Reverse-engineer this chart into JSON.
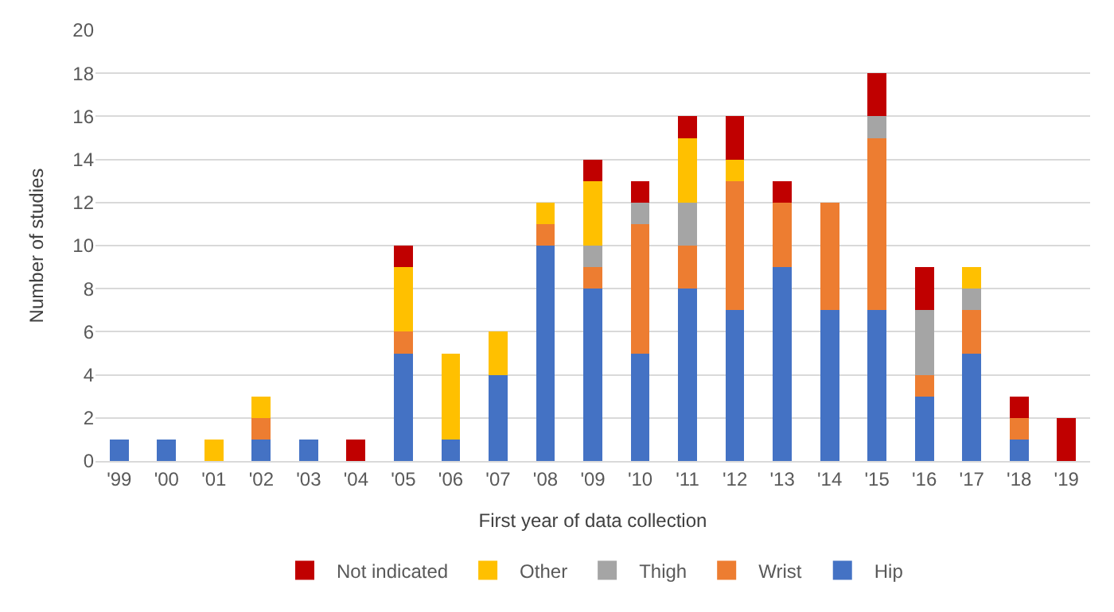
{
  "chart_data": {
    "type": "bar",
    "stacked": true,
    "xlabel": "First year of data collection",
    "ylabel": "Number of studies",
    "categories": [
      "'99",
      "'00",
      "'01",
      "'02",
      "'03",
      "'04",
      "'05",
      "'06",
      "'07",
      "'08",
      "'09",
      "'10",
      "'11",
      "'12",
      "'13",
      "'14",
      "'15",
      "'16",
      "'17",
      "'18",
      "'19"
    ],
    "series": [
      {
        "name": "Hip",
        "color": "#4472c4",
        "values": [
          1,
          1,
          0,
          1,
          1,
          0,
          5,
          1,
          4,
          10,
          8,
          5,
          8,
          7,
          9,
          7,
          7,
          3,
          5,
          1,
          0
        ]
      },
      {
        "name": "Wrist",
        "color": "#ed7d31",
        "values": [
          0,
          0,
          0,
          1,
          0,
          0,
          1,
          0,
          0,
          1,
          1,
          6,
          2,
          6,
          3,
          5,
          8,
          1,
          2,
          1,
          0
        ]
      },
      {
        "name": "Thigh",
        "color": "#a5a5a5",
        "values": [
          0,
          0,
          0,
          0,
          0,
          0,
          0,
          0,
          0,
          0,
          1,
          1,
          2,
          0,
          0,
          0,
          1,
          3,
          1,
          0,
          0
        ]
      },
      {
        "name": "Other",
        "color": "#ffc000",
        "values": [
          0,
          0,
          1,
          1,
          0,
          0,
          3,
          4,
          2,
          1,
          3,
          0,
          3,
          1,
          0,
          0,
          0,
          0,
          1,
          0,
          0
        ]
      },
      {
        "name": "Not indicated",
        "color": "#c00000",
        "values": [
          0,
          0,
          0,
          0,
          0,
          1,
          1,
          0,
          0,
          0,
          1,
          1,
          1,
          2,
          1,
          0,
          2,
          2,
          0,
          1,
          2
        ]
      }
    ],
    "ylim": [
      0,
      20
    ],
    "yticks": [
      0,
      2,
      4,
      6,
      8,
      10,
      12,
      14,
      16,
      18,
      20
    ],
    "grid": "y",
    "legend": "bottom"
  }
}
